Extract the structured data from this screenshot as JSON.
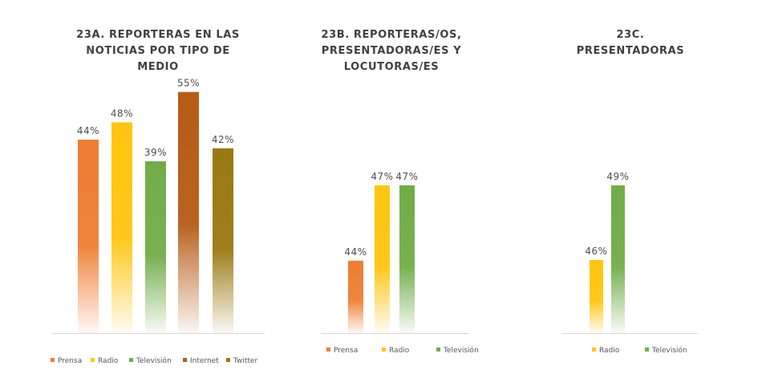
{
  "colors": {
    "prensa": "#ee7e33",
    "radio": "#ffc50f",
    "television": "#70ad47",
    "internet": "#b65b16",
    "twitter": "#9a7812"
  },
  "chart_data": [
    {
      "type": "bar",
      "title_lines": [
        "23A. REPORTERAS EN LAS",
        "NOTICIAS POR TIPO DE",
        "MEDIO"
      ],
      "categories": [
        "Prensa",
        "Radio",
        "Televisión",
        "Internet",
        "Twitter"
      ],
      "values": [
        44,
        48,
        39,
        55,
        42
      ],
      "value_labels": [
        "44%",
        "48%",
        "39%",
        "55%",
        "42%"
      ],
      "color_keys": [
        "prensa",
        "radio",
        "television",
        "internet",
        "twitter"
      ],
      "legend": [
        "Prensa",
        "Radio",
        "Televisión",
        "Internet",
        "Twitter"
      ],
      "legend_position": "bottom",
      "grid": false
    },
    {
      "type": "bar",
      "title_lines": [
        "23B. REPORTERAS/OS,",
        "PRESENTADORAS/ES Y",
        "LOCUTORAS/ES"
      ],
      "categories": [
        "Prensa",
        "Radio",
        "Televisión"
      ],
      "values": [
        44,
        47,
        47
      ],
      "value_labels": [
        "44%",
        "47%",
        "47%"
      ],
      "color_keys": [
        "prensa",
        "radio",
        "television"
      ],
      "legend": [
        "Prensa",
        "Radio",
        "Televisión"
      ],
      "legend_position": "bottom",
      "grid": false
    },
    {
      "type": "bar",
      "title_lines": [
        "23C.",
        "PRESENTADORAS"
      ],
      "categories": [
        "Radio",
        "Televisión"
      ],
      "values": [
        46,
        49
      ],
      "value_labels": [
        "46%",
        "49%"
      ],
      "color_keys": [
        "radio",
        "television"
      ],
      "legend": [
        "Radio",
        "Televisión"
      ],
      "legend_position": "bottom",
      "grid": false
    }
  ]
}
